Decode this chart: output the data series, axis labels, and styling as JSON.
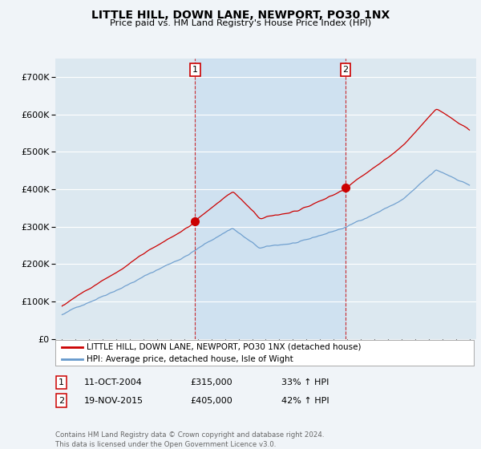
{
  "title": "LITTLE HILL, DOWN LANE, NEWPORT, PO30 1NX",
  "subtitle": "Price paid vs. HM Land Registry's House Price Index (HPI)",
  "legend_line1": "LITTLE HILL, DOWN LANE, NEWPORT, PO30 1NX (detached house)",
  "legend_line2": "HPI: Average price, detached house, Isle of Wight",
  "footer": "Contains HM Land Registry data © Crown copyright and database right 2024.\nThis data is licensed under the Open Government Licence v3.0.",
  "sale1_date": "11-OCT-2004",
  "sale1_price": "£315,000",
  "sale1_hpi": "33% ↑ HPI",
  "sale2_date": "19-NOV-2015",
  "sale2_price": "£405,000",
  "sale2_hpi": "42% ↑ HPI",
  "red_color": "#cc0000",
  "blue_color": "#6699cc",
  "shade_color": "#ddeeff",
  "background_color": "#f0f4f8",
  "plot_bg_color": "#dce8f0",
  "grid_color": "#ffffff",
  "ylim": [
    0,
    750000
  ],
  "yticks": [
    0,
    100000,
    200000,
    300000,
    400000,
    500000,
    600000,
    700000
  ],
  "sale1_x": 2004.79,
  "sale1_y": 315000,
  "sale2_x": 2015.88,
  "sale2_y": 405000,
  "xmin": 1995,
  "xmax": 2025
}
